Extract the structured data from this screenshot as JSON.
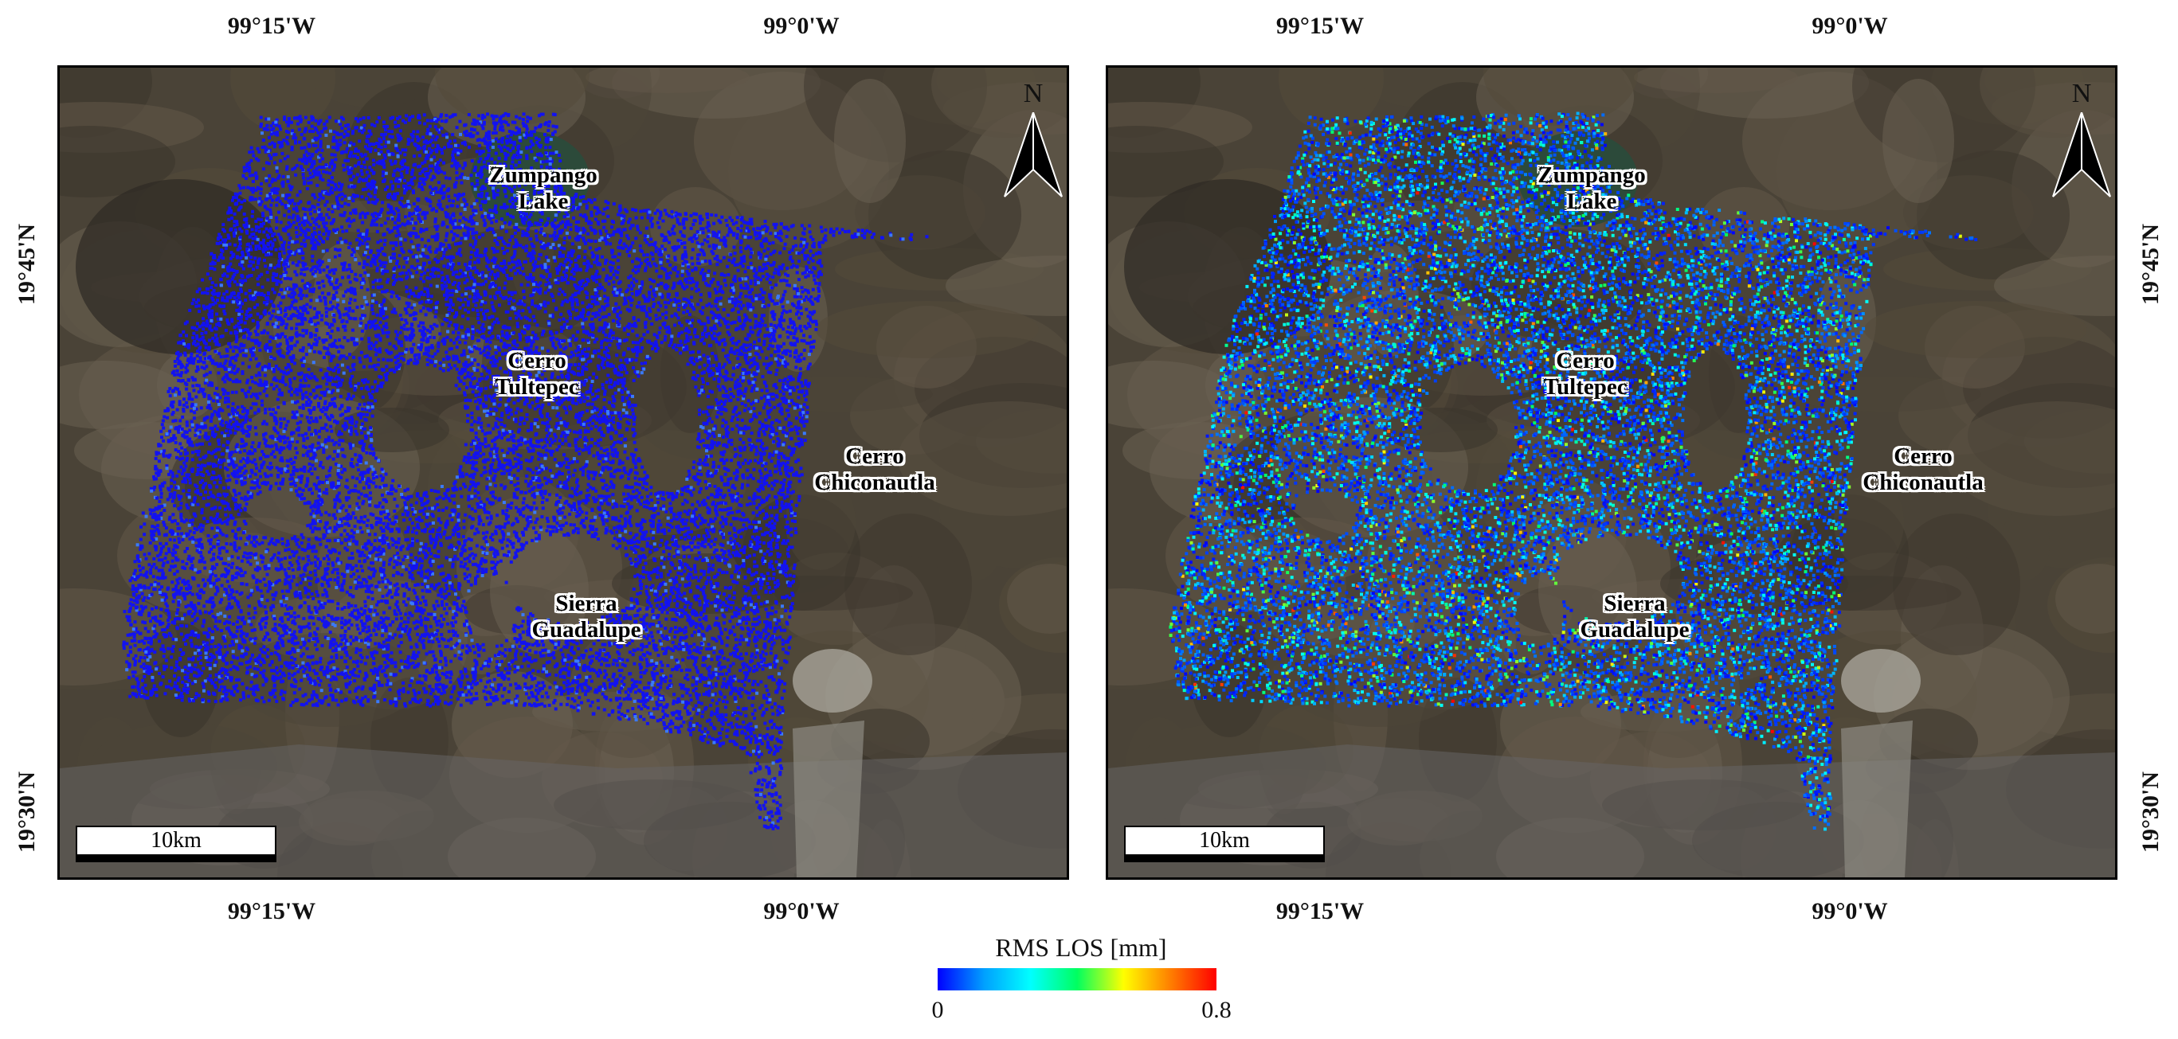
{
  "panels": [
    {
      "id": "left",
      "coloring": "uniform-low",
      "labels": {
        "zumpango": [
          "Zumpango",
          "Lake"
        ],
        "tultepec": [
          "Cerro",
          "Tultepec"
        ],
        "chiconautla": [
          "Cerro",
          "Chiconautla"
        ],
        "guadalupe": [
          "Sierra",
          "Guadalupe"
        ]
      },
      "north": "N",
      "scale_label": "10km",
      "lon_labels": [
        "99°15'W",
        "99°0'W"
      ],
      "lat_labels": [
        "19°45'N",
        "19°30'N"
      ]
    },
    {
      "id": "right",
      "coloring": "varied",
      "labels": {
        "zumpango": [
          "Zumpango",
          "Lake"
        ],
        "tultepec": [
          "Cerro",
          "Tultepec"
        ],
        "chiconautla": [
          "Cerro",
          "Chiconautla"
        ],
        "guadalupe": [
          "Sierra",
          "Guadalupe"
        ]
      },
      "north": "N",
      "scale_label": "10km",
      "lon_labels": [
        "99°15'W",
        "99°0'W"
      ],
      "lat_labels": [
        "19°45'N",
        "19°30'N"
      ]
    }
  ],
  "colorbar": {
    "title": "RMS LOS [mm]",
    "min_label": "0",
    "max_label": "0.8",
    "min": 0,
    "max": 0.8,
    "colors": [
      "#0000ff",
      "#00a0ff",
      "#00ffff",
      "#00ff60",
      "#ffff00",
      "#ff8000",
      "#ff0000"
    ]
  },
  "colors": {
    "background_terrain": "#4a4337",
    "urban": "#6b6a6a",
    "lake": "#2c4a3a",
    "mountain": "#2e2a24"
  }
}
